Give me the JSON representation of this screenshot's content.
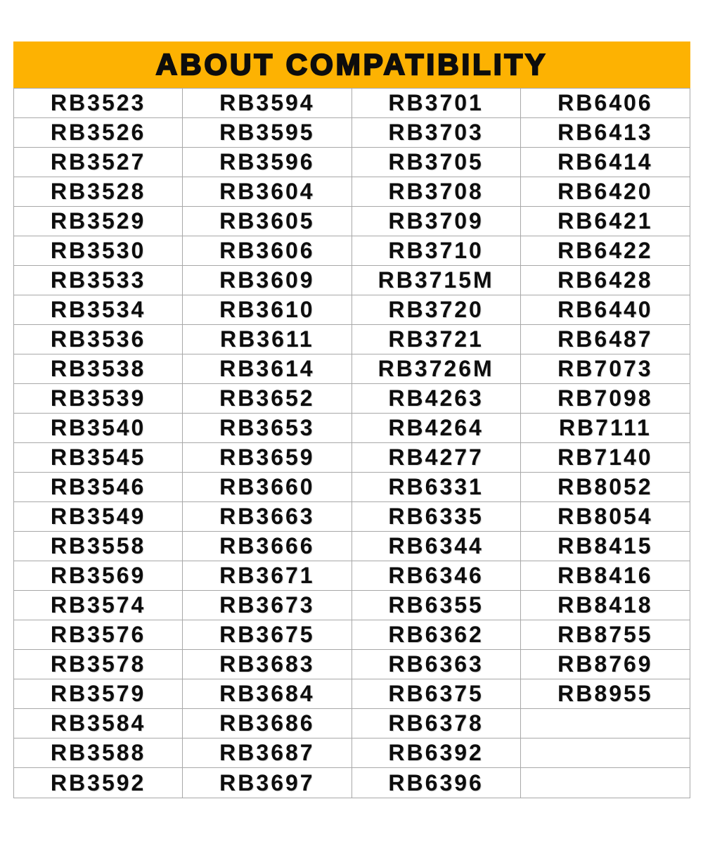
{
  "header": {
    "title": "ABOUT COMPATIBILITY",
    "bg_color": "#FDB202",
    "text_color": "#0d0d0d"
  },
  "table": {
    "rows": 24,
    "grid_line_color": "#a8a8a8",
    "columns": [
      {
        "models": [
          "RB3523",
          "RB3526",
          "RB3527",
          "RB3528",
          "RB3529",
          "RB3530",
          "RB3533",
          "RB3534",
          "RB3536",
          "RB3538",
          "RB3539",
          "RB3540",
          "RB3545",
          "RB3546",
          "RB3549",
          "RB3558",
          "RB3569",
          "RB3574",
          "RB3576",
          "RB3578",
          "RB3579",
          "RB3584",
          "RB3588",
          "RB3592"
        ]
      },
      {
        "models": [
          "RB3594",
          "RB3595",
          "RB3596",
          "RB3604",
          "RB3605",
          "RB3606",
          "RB3609",
          "RB3610",
          "RB3611",
          "RB3614",
          "RB3652",
          "RB3653",
          "RB3659",
          "RB3660",
          "RB3663",
          "RB3666",
          "RB3671",
          "RB3673",
          "RB3675",
          "RB3683",
          "RB3684",
          "RB3686",
          "RB3687",
          "RB3697"
        ]
      },
      {
        "models": [
          "RB3701",
          "RB3703",
          "RB3705",
          "RB3708",
          "RB3709",
          "RB3710",
          "RB3715M",
          "RB3720",
          "RB3721",
          "RB3726M",
          "RB4263",
          "RB4264",
          "RB4277",
          "RB6331",
          "RB6335",
          "RB6344",
          "RB6346",
          "RB6355",
          "RB6362",
          "RB6363",
          "RB6375",
          "RB6378",
          "RB6392",
          "RB6396"
        ]
      },
      {
        "models": [
          "RB6406",
          "RB6413",
          "RB6414",
          "RB6420",
          "RB6421",
          "RB6422",
          "RB6428",
          "RB6440",
          "RB6487",
          "RB7073",
          "RB7098",
          "RB7111",
          "RB7140",
          "RB8052",
          "RB8054",
          "RB8415",
          "RB8416",
          "RB8418",
          "RB8755",
          "RB8769",
          "RB8955",
          "",
          "",
          ""
        ]
      }
    ]
  }
}
